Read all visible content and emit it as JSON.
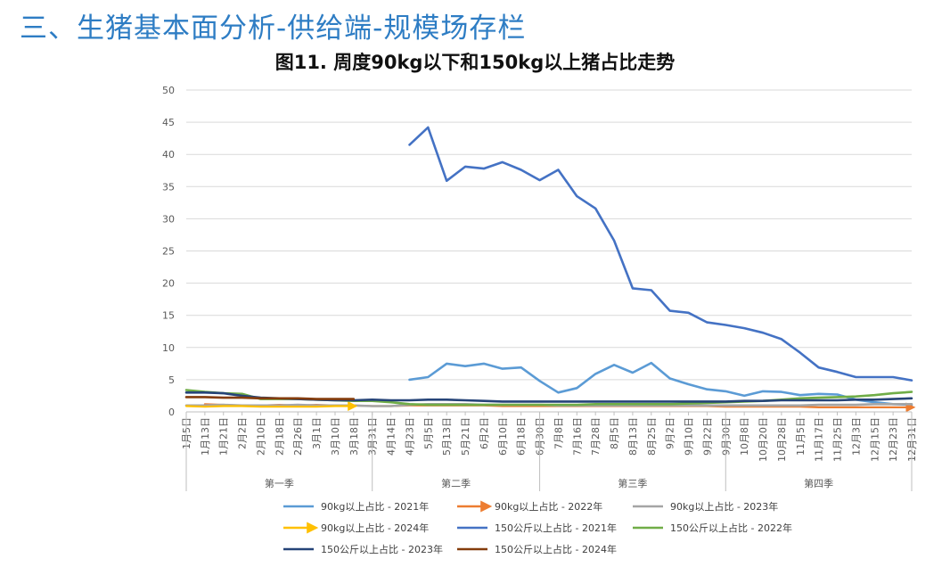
{
  "page": {
    "heading": "三、生猪基本面分析-供给端-规模场存栏"
  },
  "chart_data": {
    "type": "line",
    "title": "图11. 周度90kg以下和150kg以上猪占比走势",
    "ylim": [
      0,
      50
    ],
    "y_ticks": [
      "0",
      "5",
      "10",
      "15",
      "20",
      "25",
      "30",
      "35",
      "40",
      "45",
      "50"
    ],
    "grid": true,
    "legend_position": "bottom",
    "x_labels": [
      "1月5日",
      "1月13日",
      "1月21日",
      "2月2日",
      "2月10日",
      "2月18日",
      "2月26日",
      "3月1日",
      "3月10日",
      "3月18日",
      "3月31日",
      "4月14日",
      "4月23日",
      "5月5日",
      "5月13日",
      "5月21日",
      "6月2日",
      "6月10日",
      "6月18日",
      "6月30日",
      "7月8日",
      "7月16日",
      "7月28日",
      "8月5日",
      "8月13日",
      "8月25日",
      "9月2日",
      "9月10日",
      "9月22日",
      "9月30日",
      "10月8日",
      "10月20日",
      "10月28日",
      "11月5日",
      "11月17日",
      "11月25日",
      "12月3日",
      "12月15日",
      "12月23日",
      "12月31日"
    ],
    "quarters": [
      "第一季",
      "第二季",
      "第三季",
      "第四季"
    ],
    "series": [
      {
        "name": "90kg以上占比 - 2021年",
        "color": "#5b9bd5",
        "marker": "none",
        "x": [
          12,
          13,
          14,
          15,
          16,
          17,
          18,
          19,
          20,
          21,
          22,
          23,
          24,
          25,
          26,
          27,
          28,
          29,
          30,
          31,
          32,
          33,
          34,
          35,
          36,
          37,
          38,
          39
        ],
        "values": [
          5.0,
          5.4,
          7.5,
          7.1,
          7.5,
          6.7,
          6.9,
          4.8,
          3.0,
          3.7,
          5.9,
          7.3,
          6.1,
          7.6,
          5.2,
          4.3,
          3.5,
          3.2,
          2.5,
          3.2,
          3.1,
          2.6,
          2.8,
          2.7,
          1.9,
          1.5,
          1.2,
          1.1
        ]
      },
      {
        "name": "90kg以上占比 - 2022年",
        "color": "#ed7d31",
        "marker": "arrow",
        "x": [
          1,
          2,
          3,
          4,
          5,
          6,
          7,
          8,
          9,
          10,
          11,
          12,
          13,
          14,
          15,
          16,
          17,
          18,
          19,
          20,
          21,
          22,
          23,
          24,
          25,
          26,
          27,
          28,
          29,
          30,
          31,
          32,
          33,
          34,
          35,
          36,
          37,
          38,
          39
        ],
        "values": [
          1.2,
          1.1,
          1.0,
          1.0,
          1.1,
          1.0,
          1.1,
          1.0,
          1.0,
          0.9,
          0.9,
          1.0,
          1.0,
          1.0,
          1.0,
          1.0,
          0.9,
          0.9,
          0.9,
          0.9,
          0.9,
          0.9,
          0.9,
          0.9,
          0.9,
          0.9,
          0.9,
          0.9,
          0.8,
          0.8,
          0.8,
          0.8,
          0.8,
          0.7,
          0.7,
          0.7,
          0.7,
          0.7,
          0.7
        ]
      },
      {
        "name": "90kg以上占比 - 2023年",
        "color": "#a5a5a5",
        "marker": "none",
        "x": [
          0,
          1,
          2,
          3,
          4,
          5,
          6,
          7,
          8,
          9,
          10,
          11,
          12,
          13,
          14,
          15,
          16,
          17,
          18,
          19,
          20,
          21,
          22,
          23,
          24,
          25,
          26,
          27,
          28,
          29,
          30,
          31,
          32,
          33,
          34,
          35,
          36,
          37,
          38,
          39
        ],
        "values": [
          1.0,
          1.0,
          1.1,
          1.0,
          1.0,
          1.0,
          1.1,
          1.0,
          1.0,
          1.0,
          0.9,
          0.9,
          1.1,
          1.2,
          1.2,
          1.2,
          1.1,
          1.1,
          1.1,
          1.1,
          1.0,
          1.0,
          1.0,
          1.0,
          1.0,
          1.0,
          1.0,
          1.0,
          1.0,
          1.0,
          1.0,
          1.0,
          1.0,
          1.0,
          1.1,
          1.1,
          1.1,
          1.2,
          1.2,
          1.2
        ]
      },
      {
        "name": "90kg以上占比 - 2024年",
        "color": "#ffc000",
        "marker": "arrow",
        "x": [
          0,
          1,
          2,
          3,
          4,
          5,
          6,
          7,
          8,
          9
        ],
        "values": [
          0.9,
          0.8,
          0.9,
          0.9,
          0.8,
          0.8,
          0.8,
          0.8,
          0.9,
          0.9
        ]
      },
      {
        "name": "150公斤以上占比 - 2021年",
        "color": "#4472c4",
        "marker": "none",
        "x": [
          12,
          13,
          14,
          15,
          16,
          17,
          18,
          19,
          20,
          21,
          22,
          23,
          24,
          25,
          26,
          27,
          28,
          29,
          30,
          31,
          32,
          33,
          34,
          35,
          36,
          37,
          38,
          39
        ],
        "values": [
          41.5,
          44.2,
          35.9,
          38.1,
          37.8,
          38.8,
          37.6,
          36.0,
          37.6,
          33.5,
          31.6,
          26.6,
          19.2,
          18.9,
          15.7,
          15.4,
          13.9,
          13.5,
          13.0,
          12.3,
          11.3,
          9.2,
          6.9,
          6.2,
          5.4,
          5.4,
          5.4,
          4.9
        ]
      },
      {
        "name": "150公斤以上占比 - 2022年",
        "color": "#70ad47",
        "marker": "none",
        "x": [
          0,
          1,
          2,
          3,
          4,
          5,
          6,
          7,
          8,
          9,
          10,
          11,
          12,
          13,
          14,
          15,
          16,
          17,
          18,
          19,
          20,
          21,
          22,
          23,
          24,
          25,
          26,
          27,
          28,
          29,
          30,
          31,
          32,
          33,
          34,
          35,
          36,
          37,
          38,
          39
        ],
        "values": [
          3.4,
          3.1,
          2.9,
          2.8,
          2.0,
          2.0,
          2.0,
          1.9,
          1.8,
          1.7,
          1.7,
          1.5,
          1.2,
          1.1,
          1.1,
          1.1,
          1.1,
          1.1,
          1.1,
          1.1,
          1.1,
          1.1,
          1.2,
          1.2,
          1.2,
          1.2,
          1.2,
          1.3,
          1.4,
          1.5,
          1.6,
          1.7,
          1.9,
          2.1,
          2.2,
          2.3,
          2.4,
          2.6,
          2.9,
          3.1
        ]
      },
      {
        "name": "150公斤以上占比 - 2023年",
        "color": "#264478",
        "marker": "none",
        "x": [
          0,
          1,
          2,
          3,
          4,
          5,
          6,
          7,
          8,
          9,
          10,
          11,
          12,
          13,
          14,
          15,
          16,
          17,
          18,
          19,
          20,
          21,
          22,
          23,
          24,
          25,
          26,
          27,
          28,
          29,
          30,
          31,
          32,
          33,
          34,
          35,
          36,
          37,
          38,
          39
        ],
        "values": [
          3.0,
          3.0,
          2.9,
          2.5,
          2.2,
          2.1,
          2.0,
          1.9,
          1.8,
          1.8,
          1.9,
          1.8,
          1.8,
          1.9,
          1.9,
          1.8,
          1.7,
          1.6,
          1.6,
          1.6,
          1.6,
          1.6,
          1.6,
          1.6,
          1.6,
          1.6,
          1.6,
          1.6,
          1.6,
          1.6,
          1.7,
          1.7,
          1.8,
          1.8,
          1.8,
          1.8,
          1.9,
          1.9,
          2.0,
          2.1
        ]
      },
      {
        "name": "150公斤以上占比 - 2024年",
        "color": "#843c0c",
        "marker": "none",
        "x": [
          0,
          1,
          2,
          3,
          4,
          5,
          6,
          7,
          8,
          9
        ],
        "values": [
          2.3,
          2.3,
          2.2,
          2.2,
          2.1,
          2.1,
          2.1,
          2.0,
          2.0,
          2.0
        ]
      }
    ]
  }
}
